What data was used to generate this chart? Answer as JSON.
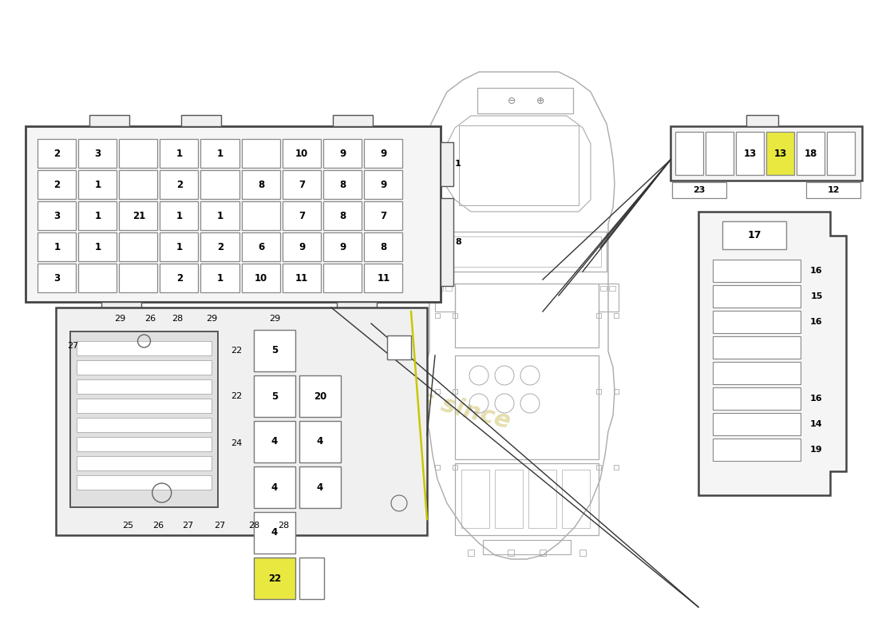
{
  "bg_color": "#ffffff",
  "watermark_color": "#d4c87a",
  "car_color": "#aaaaaa",
  "line_color": "#333333",
  "box_ec": "#444444",
  "cell_ec": "#888888",
  "top_fuse_rows": [
    [
      "2",
      "3",
      "",
      "1",
      "1",
      "",
      "10",
      "9",
      "9"
    ],
    [
      "2",
      "1",
      "",
      "2",
      "",
      "8",
      "7",
      "8",
      "9"
    ],
    [
      "3",
      "1",
      "21",
      "1",
      "1",
      "",
      "7",
      "8",
      "7"
    ],
    [
      "1",
      "1",
      "",
      "1",
      "2",
      "6",
      "9",
      "9",
      "8"
    ],
    [
      "3",
      "",
      "",
      "2",
      "1",
      "10",
      "11",
      "",
      "11"
    ]
  ],
  "right_fuse_labels": [
    "16",
    "15",
    "16",
    "",
    "",
    "16",
    "14",
    "19"
  ],
  "top_right_cells": [
    "",
    "",
    "13",
    "13",
    "18",
    ""
  ],
  "highlight_color": "#e8e840",
  "highlight_idx": 3
}
